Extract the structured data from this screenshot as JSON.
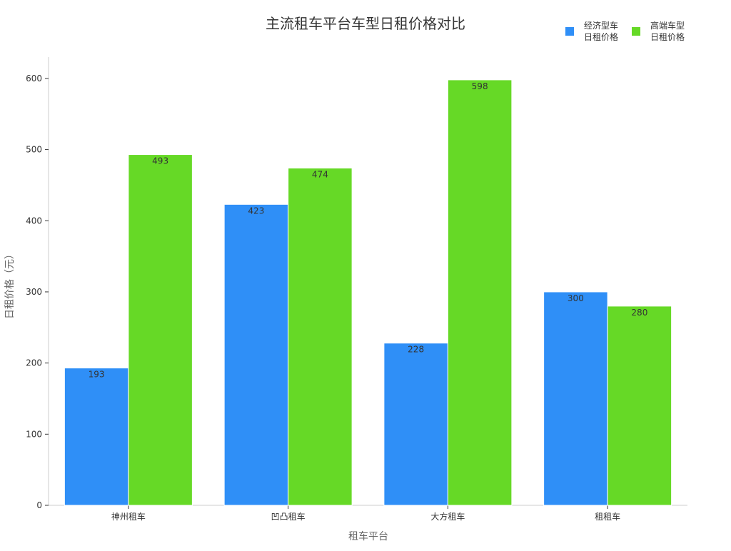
{
  "chart_data": {
    "type": "bar",
    "title": "主流租车平台车型日租价格对比",
    "xlabel": "租车平台",
    "ylabel": "日租价格（元）",
    "categories": [
      "神州租车",
      "凹凸租车",
      "大方租车",
      "租租车"
    ],
    "series": [
      {
        "name": [
          "经济型车",
          "日租价格"
        ],
        "values": [
          193,
          423,
          228,
          300
        ],
        "color": "#2f8ff7"
      },
      {
        "name": [
          "高端车型",
          "日租价格"
        ],
        "values": [
          493,
          474,
          598,
          280
        ],
        "color": "#66d926"
      }
    ],
    "ylim": [
      0,
      630
    ],
    "yticks": [
      0,
      100,
      200,
      300,
      400,
      500,
      600
    ],
    "grid": false,
    "legend_position": "top-right",
    "data_labels": true
  }
}
